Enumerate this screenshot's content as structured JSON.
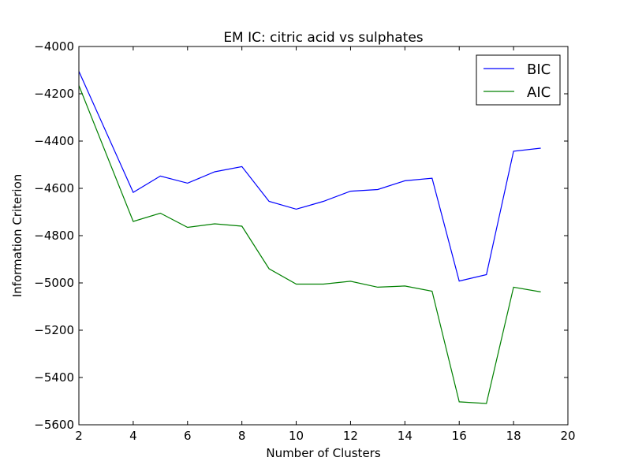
{
  "chart_data": {
    "type": "line",
    "title": "EM IC: citric acid vs sulphates",
    "xlabel": "Number of Clusters",
    "ylabel": "Information Criterion",
    "xlim": [
      2,
      20
    ],
    "ylim": [
      -5600,
      -4000
    ],
    "x_ticks": [
      2,
      4,
      6,
      8,
      10,
      12,
      14,
      16,
      18,
      20
    ],
    "y_ticks": [
      -4000,
      -4200,
      -4400,
      -4600,
      -4800,
      -5000,
      -5200,
      -5400,
      -5600
    ],
    "grid": false,
    "legend_position": "top-right",
    "x": [
      2,
      4,
      5,
      6,
      7,
      8,
      9,
      10,
      11,
      12,
      13,
      14,
      15,
      16,
      17,
      18,
      19
    ],
    "series": [
      {
        "name": "BIC",
        "color": "#0000ff",
        "values": [
          -4105,
          -4617,
          -4548,
          -4578,
          -4530,
          -4508,
          -4655,
          -4688,
          -4655,
          -4612,
          -4605,
          -4568,
          -4557,
          -4992,
          -4965,
          -4443,
          -4430
        ]
      },
      {
        "name": "AIC",
        "color": "#008000",
        "values": [
          -4165,
          -4740,
          -4705,
          -4765,
          -4750,
          -4760,
          -4940,
          -5005,
          -5005,
          -4993,
          -5018,
          -5013,
          -5035,
          -5503,
          -5510,
          -5018,
          -5038
        ]
      }
    ]
  }
}
